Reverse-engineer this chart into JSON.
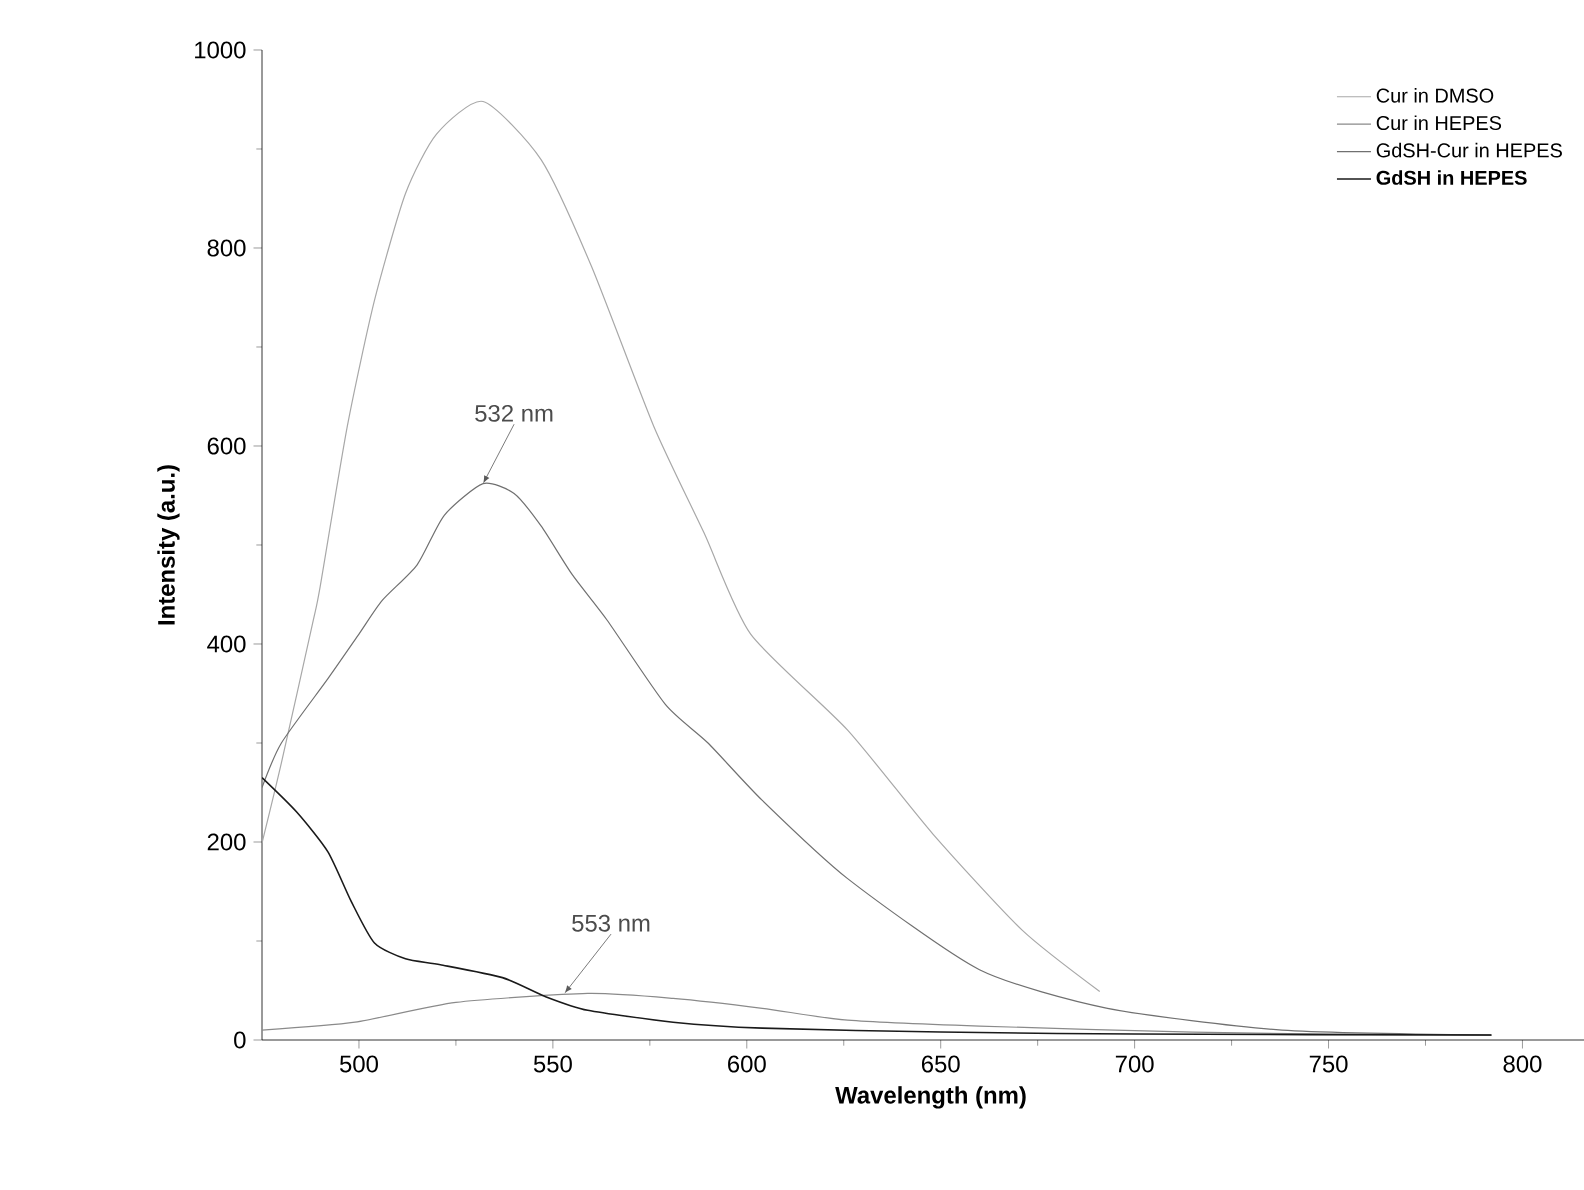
{
  "chart_data": {
    "type": "line",
    "xlabel": "Wavelength (nm)",
    "ylabel": "Intensity (a.u.)",
    "xlim": [
      475,
      820
    ],
    "xticks": [
      500,
      550,
      600,
      650,
      700,
      750,
      800
    ],
    "ylim": [
      0,
      1000
    ],
    "yticks": [
      0,
      200,
      400,
      600,
      800,
      1000
    ],
    "legend": "top right",
    "grid": false,
    "marker": "none",
    "line_style": "solid",
    "annotations": [
      {
        "text": "532 nm",
        "x": 532,
        "y": 562
      },
      {
        "text": "553 nm",
        "x": 553,
        "y": 47
      }
    ],
    "series": [
      {
        "name": "Cur in DMSO",
        "color": "#a8a8a8",
        "x": [
          475,
          480,
          488,
          490,
          497,
          504,
          512,
          520,
          532,
          547,
          560,
          576,
          589,
          601,
          626,
          648,
          671,
          691
        ],
        "values": [
          199,
          280,
          420,
          458,
          620,
          747,
          855,
          915,
          948,
          889,
          781,
          620,
          512,
          410,
          313,
          208,
          111,
          49
        ]
      },
      {
        "name": "Cur in HEPES",
        "color": "#8a8a8a",
        "x": [
          475,
          499,
          525,
          559,
          581,
          604,
          626,
          660,
          715,
          750,
          792
        ],
        "values": [
          10,
          18,
          38,
          47,
          42,
          32,
          20,
          14,
          8,
          6,
          5
        ]
      },
      {
        "name": "GdSH-Cur in HEPES",
        "color": "#707070",
        "x": [
          475,
          480,
          492,
          500,
          506,
          515,
          522,
          532,
          540,
          547,
          555,
          564,
          579,
          590,
          604,
          626,
          660,
          693,
          738,
          792
        ],
        "values": [
          255,
          300,
          365,
          410,
          444,
          480,
          530,
          562,
          552,
          519,
          470,
          424,
          339,
          300,
          242,
          163,
          71,
          32,
          10,
          5
        ]
      },
      {
        "name": "GdSH in HEPES",
        "color": "#1a1a1a",
        "x": [
          475,
          484,
          492,
          498,
          504,
          512,
          521,
          537,
          548,
          559,
          581,
          604,
          650,
          700,
          792
        ],
        "values": [
          265,
          230,
          190,
          140,
          98,
          82,
          76,
          63,
          44,
          30,
          18,
          12,
          8,
          6,
          5
        ]
      }
    ]
  }
}
